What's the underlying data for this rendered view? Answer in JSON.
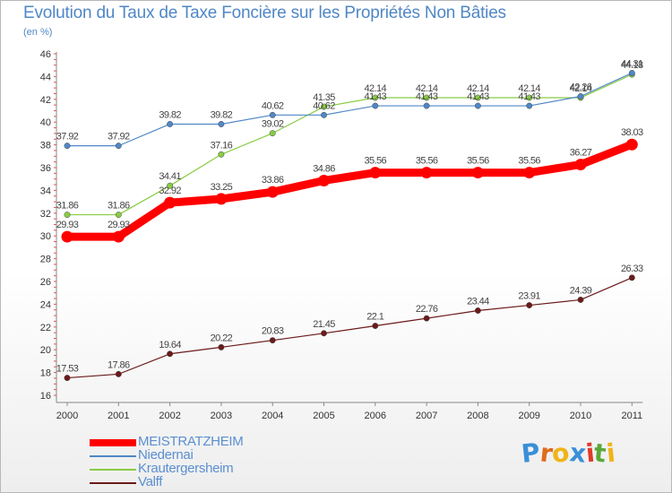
{
  "title": "Evolution du Taux de Taxe Foncière sur les Propriétés Non Bâties",
  "subtitle": "(en %)",
  "logo": {
    "letters": [
      "P",
      "r",
      "o",
      "x",
      "i",
      "t",
      "i"
    ],
    "colors": [
      "#3a8fd8",
      "#e06a1c",
      "#f0b418",
      "#3a8fd8",
      "#e03a2a",
      "#5aa83a",
      "#f0b418"
    ]
  },
  "chart_data": {
    "type": "line",
    "title": "Evolution du Taux de Taxe Foncière sur les Propriétés Non Bâties",
    "ylabel": "(en %)",
    "xlabel": "",
    "x": [
      "2000",
      "2001",
      "2002",
      "2003",
      "2004",
      "2005",
      "2006",
      "2007",
      "2008",
      "2009",
      "2010",
      "2011"
    ],
    "ylim": [
      16,
      46
    ],
    "yticks": [
      "16",
      "18",
      "20",
      "22",
      "24",
      "26",
      "28",
      "30",
      "32",
      "34",
      "36",
      "38",
      "40",
      "42",
      "44",
      "46"
    ],
    "grid": false,
    "legend_position": "bottom-left",
    "series": [
      {
        "name": "MEISTRATZHEIM",
        "color": "#ff0000",
        "emphasis": true,
        "values": [
          29.93,
          29.93,
          32.92,
          33.25,
          33.86,
          34.86,
          35.56,
          35.56,
          35.56,
          35.56,
          36.27,
          38.03
        ],
        "labels": [
          "29.93",
          "29.93",
          "32.92",
          "33.25",
          "33.86",
          "34.86",
          "35.56",
          "35.56",
          "35.56",
          "35.56",
          "36.27",
          "38.03"
        ]
      },
      {
        "name": "Niedernai",
        "color": "#4f87c6",
        "emphasis": false,
        "values": [
          37.92,
          37.92,
          39.82,
          39.82,
          40.62,
          40.62,
          41.43,
          41.43,
          41.43,
          41.43,
          42.26,
          44.31
        ],
        "labels": [
          "37.92",
          "37.92",
          "39.82",
          "39.82",
          "40.62",
          "40.62",
          "41.43",
          "41.43",
          "41.43",
          "41.43",
          "42.26",
          "44.31"
        ]
      },
      {
        "name": "Krautergersheim",
        "color": "#88cc44",
        "emphasis": false,
        "values": [
          31.86,
          31.86,
          34.41,
          37.16,
          39.02,
          41.35,
          42.14,
          42.14,
          42.14,
          42.14,
          42.14,
          44.18
        ],
        "labels": [
          "31.86",
          "31.86",
          "34.41",
          "37.16",
          "39.02",
          "41.35",
          "42.14",
          "42.14",
          "42.14",
          "42.14",
          "42.14",
          "44.18"
        ]
      },
      {
        "name": "Valff",
        "color": "#6b1a1a",
        "emphasis": false,
        "values": [
          17.53,
          17.86,
          19.64,
          20.22,
          20.83,
          21.45,
          22.1,
          22.76,
          23.44,
          23.91,
          24.39,
          26.33
        ],
        "labels": [
          "17.53",
          "17.86",
          "19.64",
          "20.22",
          "20.83",
          "21.45",
          "22.1",
          "22.76",
          "23.44",
          "23.91",
          "24.39",
          "26.33"
        ]
      }
    ]
  }
}
